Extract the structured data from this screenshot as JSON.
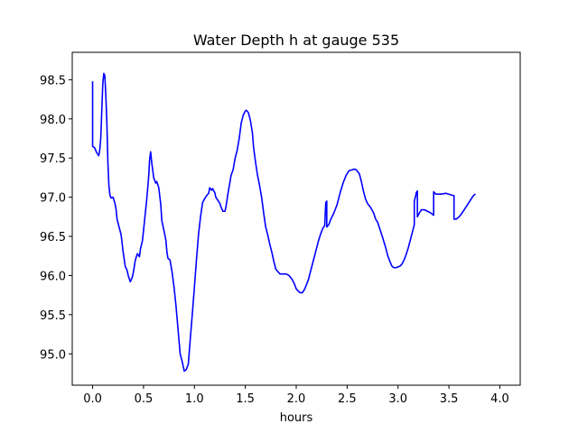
{
  "chart_data": {
    "type": "line",
    "title": "Water Depth h at gauge 535",
    "xlabel": "hours",
    "ylabel": "",
    "xlim": [
      -0.2,
      4.2
    ],
    "ylim": [
      94.6,
      98.85
    ],
    "xticks": [
      0.0,
      0.5,
      1.0,
      1.5,
      2.0,
      2.5,
      3.0,
      3.5,
      4.0
    ],
    "xtick_labels": [
      "0.0",
      "0.5",
      "1.0",
      "1.5",
      "2.0",
      "2.5",
      "3.0",
      "3.5",
      "4.0"
    ],
    "yticks": [
      95.0,
      95.5,
      96.0,
      96.5,
      97.0,
      97.5,
      98.0,
      98.5
    ],
    "ytick_labels": [
      "95.0",
      "95.5",
      "96.0",
      "96.5",
      "97.0",
      "97.5",
      "98.0",
      "98.5"
    ],
    "grid": false,
    "series": [
      {
        "color": "#0000ff",
        "points": [
          [
            0.0,
            98.48
          ],
          [
            0.0,
            97.65
          ],
          [
            0.02,
            97.63
          ],
          [
            0.04,
            97.57
          ],
          [
            0.06,
            97.53
          ],
          [
            0.07,
            97.6
          ],
          [
            0.08,
            97.75
          ],
          [
            0.09,
            98.1
          ],
          [
            0.1,
            98.45
          ],
          [
            0.11,
            98.58
          ],
          [
            0.12,
            98.55
          ],
          [
            0.13,
            98.3
          ],
          [
            0.14,
            97.95
          ],
          [
            0.15,
            97.45
          ],
          [
            0.16,
            97.15
          ],
          [
            0.17,
            97.03
          ],
          [
            0.18,
            96.99
          ],
          [
            0.2,
            97.0
          ],
          [
            0.22,
            96.92
          ],
          [
            0.23,
            96.85
          ],
          [
            0.24,
            96.72
          ],
          [
            0.26,
            96.62
          ],
          [
            0.28,
            96.52
          ],
          [
            0.3,
            96.3
          ],
          [
            0.32,
            96.12
          ],
          [
            0.34,
            96.06
          ],
          [
            0.35,
            96.0
          ],
          [
            0.37,
            95.92
          ],
          [
            0.39,
            95.98
          ],
          [
            0.4,
            96.04
          ],
          [
            0.42,
            96.2
          ],
          [
            0.44,
            96.28
          ],
          [
            0.46,
            96.24
          ],
          [
            0.47,
            96.34
          ],
          [
            0.49,
            96.45
          ],
          [
            0.51,
            96.7
          ],
          [
            0.53,
            96.95
          ],
          [
            0.55,
            97.25
          ],
          [
            0.56,
            97.48
          ],
          [
            0.57,
            97.58
          ],
          [
            0.58,
            97.45
          ],
          [
            0.6,
            97.25
          ],
          [
            0.62,
            97.18
          ],
          [
            0.63,
            97.2
          ],
          [
            0.65,
            97.12
          ],
          [
            0.67,
            96.9
          ],
          [
            0.68,
            96.7
          ],
          [
            0.7,
            96.58
          ],
          [
            0.72,
            96.45
          ],
          [
            0.73,
            96.3
          ],
          [
            0.74,
            96.22
          ],
          [
            0.76,
            96.2
          ],
          [
            0.78,
            96.05
          ],
          [
            0.8,
            95.85
          ],
          [
            0.82,
            95.6
          ],
          [
            0.84,
            95.3
          ],
          [
            0.86,
            95.0
          ],
          [
            0.88,
            94.9
          ],
          [
            0.9,
            94.78
          ],
          [
            0.92,
            94.8
          ],
          [
            0.94,
            94.87
          ],
          [
            0.96,
            95.2
          ],
          [
            0.98,
            95.52
          ],
          [
            1.0,
            95.85
          ],
          [
            1.02,
            96.2
          ],
          [
            1.04,
            96.52
          ],
          [
            1.06,
            96.75
          ],
          [
            1.08,
            96.93
          ],
          [
            1.1,
            96.98
          ],
          [
            1.12,
            97.02
          ],
          [
            1.14,
            97.05
          ],
          [
            1.15,
            97.12
          ],
          [
            1.17,
            97.09
          ],
          [
            1.18,
            97.11
          ],
          [
            1.19,
            97.08
          ],
          [
            1.2,
            97.06
          ],
          [
            1.21,
            97.0
          ],
          [
            1.23,
            96.96
          ],
          [
            1.25,
            96.92
          ],
          [
            1.26,
            96.88
          ],
          [
            1.28,
            96.82
          ],
          [
            1.3,
            96.82
          ],
          [
            1.31,
            96.88
          ],
          [
            1.33,
            97.05
          ],
          [
            1.35,
            97.2
          ],
          [
            1.36,
            97.28
          ],
          [
            1.38,
            97.35
          ],
          [
            1.4,
            97.5
          ],
          [
            1.42,
            97.6
          ],
          [
            1.44,
            97.75
          ],
          [
            1.46,
            97.95
          ],
          [
            1.48,
            98.05
          ],
          [
            1.5,
            98.1
          ],
          [
            1.51,
            98.11
          ],
          [
            1.53,
            98.08
          ],
          [
            1.55,
            97.98
          ],
          [
            1.57,
            97.82
          ],
          [
            1.58,
            97.65
          ],
          [
            1.6,
            97.45
          ],
          [
            1.62,
            97.28
          ],
          [
            1.64,
            97.15
          ],
          [
            1.66,
            97.0
          ],
          [
            1.68,
            96.8
          ],
          [
            1.7,
            96.62
          ],
          [
            1.72,
            96.52
          ],
          [
            1.74,
            96.4
          ],
          [
            1.76,
            96.3
          ],
          [
            1.78,
            96.18
          ],
          [
            1.8,
            96.08
          ],
          [
            1.82,
            96.05
          ],
          [
            1.84,
            96.02
          ],
          [
            1.87,
            96.02
          ],
          [
            1.9,
            96.02
          ],
          [
            1.93,
            96.0
          ],
          [
            1.96,
            95.95
          ],
          [
            1.98,
            95.9
          ],
          [
            2.0,
            95.83
          ],
          [
            2.02,
            95.8
          ],
          [
            2.04,
            95.78
          ],
          [
            2.06,
            95.78
          ],
          [
            2.08,
            95.82
          ],
          [
            2.1,
            95.88
          ],
          [
            2.12,
            95.95
          ],
          [
            2.15,
            96.1
          ],
          [
            2.18,
            96.25
          ],
          [
            2.2,
            96.35
          ],
          [
            2.22,
            96.45
          ],
          [
            2.24,
            96.53
          ],
          [
            2.26,
            96.6
          ],
          [
            2.28,
            96.64
          ],
          [
            2.29,
            96.93
          ],
          [
            2.3,
            96.95
          ],
          [
            2.3,
            96.62
          ],
          [
            2.32,
            96.65
          ],
          [
            2.34,
            96.72
          ],
          [
            2.37,
            96.8
          ],
          [
            2.4,
            96.9
          ],
          [
            2.43,
            97.05
          ],
          [
            2.46,
            97.18
          ],
          [
            2.49,
            97.28
          ],
          [
            2.52,
            97.34
          ],
          [
            2.55,
            97.35
          ],
          [
            2.57,
            97.36
          ],
          [
            2.59,
            97.35
          ],
          [
            2.62,
            97.3
          ],
          [
            2.64,
            97.2
          ],
          [
            2.66,
            97.08
          ],
          [
            2.68,
            96.98
          ],
          [
            2.7,
            96.92
          ],
          [
            2.73,
            96.87
          ],
          [
            2.76,
            96.8
          ],
          [
            2.78,
            96.72
          ],
          [
            2.8,
            96.68
          ],
          [
            2.82,
            96.6
          ],
          [
            2.85,
            96.48
          ],
          [
            2.88,
            96.35
          ],
          [
            2.9,
            96.25
          ],
          [
            2.92,
            96.18
          ],
          [
            2.94,
            96.12
          ],
          [
            2.96,
            96.1
          ],
          [
            2.98,
            96.1
          ],
          [
            3.0,
            96.11
          ],
          [
            3.02,
            96.12
          ],
          [
            3.04,
            96.15
          ],
          [
            3.06,
            96.2
          ],
          [
            3.08,
            96.27
          ],
          [
            3.1,
            96.35
          ],
          [
            3.12,
            96.45
          ],
          [
            3.14,
            96.55
          ],
          [
            3.16,
            96.65
          ],
          [
            3.16,
            96.95
          ],
          [
            3.17,
            97.0
          ],
          [
            3.18,
            97.06
          ],
          [
            3.19,
            97.08
          ],
          [
            3.19,
            96.75
          ],
          [
            3.21,
            96.8
          ],
          [
            3.23,
            96.84
          ],
          [
            3.26,
            96.84
          ],
          [
            3.29,
            96.82
          ],
          [
            3.32,
            96.8
          ],
          [
            3.35,
            96.77
          ],
          [
            3.35,
            97.07
          ],
          [
            3.37,
            97.04
          ],
          [
            3.42,
            97.04
          ],
          [
            3.47,
            97.05
          ],
          [
            3.52,
            97.03
          ],
          [
            3.55,
            97.02
          ],
          [
            3.55,
            96.72
          ],
          [
            3.57,
            96.72
          ],
          [
            3.6,
            96.75
          ],
          [
            3.63,
            96.8
          ],
          [
            3.66,
            96.86
          ],
          [
            3.69,
            96.92
          ],
          [
            3.72,
            96.98
          ],
          [
            3.74,
            97.02
          ],
          [
            3.76,
            97.04
          ]
        ]
      }
    ]
  }
}
